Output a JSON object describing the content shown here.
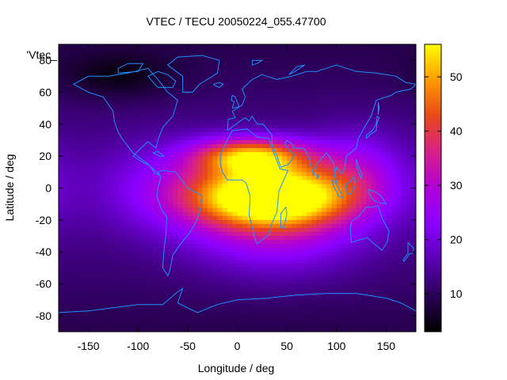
{
  "chart_data": {
    "type": "heatmap",
    "title": "VTEC / TECU 20050224_055.47700",
    "xlabel": "Longitude / deg",
    "ylabel": "Latitude / deg",
    "series_label": "'Vtec_",
    "xlim": [
      -180,
      180
    ],
    "ylim": [
      -90,
      90
    ],
    "x_ticks": [
      -150,
      -100,
      -50,
      0,
      50,
      100,
      150
    ],
    "y_ticks": [
      -80,
      -60,
      -40,
      -20,
      0,
      20,
      40,
      60,
      80
    ],
    "colorbar": {
      "range": [
        3,
        56
      ],
      "ticks": [
        10,
        20,
        30,
        40,
        50
      ],
      "stops": [
        "#000000",
        "#2a0055",
        "#5a00b4",
        "#8a00ff",
        "#b000d8",
        "#d8208a",
        "#e84818",
        "#ff9a00",
        "#ffff00"
      ]
    },
    "grid": false,
    "field_model": {
      "background": 9,
      "components": [
        {
          "lon": 35,
          "lat": -5,
          "amplitude": 42,
          "lon_sigma": 55,
          "lat_sigma": 13
        },
        {
          "lon": 15,
          "lat": 20,
          "amplitude": 34,
          "lon_sigma": 40,
          "lat_sigma": 8
        },
        {
          "lon": 40,
          "lat": -20,
          "amplitude": 18,
          "lon_sigma": 60,
          "lat_sigma": 22
        },
        {
          "lon": -60,
          "lat": 0,
          "amplitude": 10,
          "lon_sigma": 60,
          "lat_sigma": 20
        },
        {
          "lon": 120,
          "lat": 10,
          "amplitude": 12,
          "lon_sigma": 35,
          "lat_sigma": 18
        },
        {
          "lon": -120,
          "lat": 70,
          "amplitude": -6,
          "lon_sigma": 40,
          "lat_sigma": 10
        }
      ]
    },
    "coastlines": [
      {
        "name": "north-america",
        "points": [
          [
            -165,
            65
          ],
          [
            -150,
            70
          ],
          [
            -130,
            70
          ],
          [
            -110,
            72
          ],
          [
            -90,
            75
          ],
          [
            -80,
            68
          ],
          [
            -70,
            60
          ],
          [
            -60,
            55
          ],
          [
            -65,
            45
          ],
          [
            -75,
            38
          ],
          [
            -80,
            30
          ],
          [
            -82,
            25
          ],
          [
            -90,
            29
          ],
          [
            -97,
            25
          ],
          [
            -105,
            20
          ],
          [
            -95,
            16
          ],
          [
            -88,
            14
          ],
          [
            -83,
            9
          ],
          [
            -78,
            8
          ],
          [
            -90,
            15
          ],
          [
            -105,
            22
          ],
          [
            -115,
            30
          ],
          [
            -120,
            35
          ],
          [
            -124,
            42
          ],
          [
            -125,
            48
          ],
          [
            -135,
            57
          ],
          [
            -150,
            60
          ],
          [
            -165,
            65
          ]
        ]
      },
      {
        "name": "greenland",
        "points": [
          [
            -55,
            60
          ],
          [
            -45,
            60
          ],
          [
            -38,
            65
          ],
          [
            -20,
            72
          ],
          [
            -18,
            80
          ],
          [
            -35,
            83
          ],
          [
            -60,
            82
          ],
          [
            -70,
            77
          ],
          [
            -55,
            70
          ],
          [
            -55,
            60
          ]
        ]
      },
      {
        "name": "south-america",
        "points": [
          [
            -80,
            10
          ],
          [
            -75,
            11
          ],
          [
            -62,
            10
          ],
          [
            -50,
            0
          ],
          [
            -35,
            -5
          ],
          [
            -38,
            -15
          ],
          [
            -42,
            -22
          ],
          [
            -48,
            -28
          ],
          [
            -57,
            -35
          ],
          [
            -65,
            -42
          ],
          [
            -68,
            -52
          ],
          [
            -70,
            -55
          ],
          [
            -75,
            -50
          ],
          [
            -74,
            -40
          ],
          [
            -72,
            -30
          ],
          [
            -71,
            -18
          ],
          [
            -76,
            -14
          ],
          [
            -81,
            -5
          ],
          [
            -80,
            0
          ],
          [
            -77,
            7
          ],
          [
            -80,
            10
          ]
        ]
      },
      {
        "name": "africa",
        "points": [
          [
            -17,
            15
          ],
          [
            -17,
            21
          ],
          [
            -10,
            30
          ],
          [
            -5,
            36
          ],
          [
            10,
            37
          ],
          [
            20,
            32
          ],
          [
            32,
            31
          ],
          [
            35,
            25
          ],
          [
            43,
            12
          ],
          [
            51,
            11
          ],
          [
            42,
            -2
          ],
          [
            40,
            -15
          ],
          [
            35,
            -22
          ],
          [
            32,
            -29
          ],
          [
            20,
            -35
          ],
          [
            18,
            -32
          ],
          [
            12,
            -17
          ],
          [
            13,
            -5
          ],
          [
            9,
            3
          ],
          [
            5,
            5
          ],
          [
            -10,
            5
          ],
          [
            -15,
            10
          ],
          [
            -17,
            15
          ]
        ]
      },
      {
        "name": "eurasia",
        "points": [
          [
            -10,
            36
          ],
          [
            -9,
            43
          ],
          [
            -2,
            44
          ],
          [
            -5,
            48
          ],
          [
            5,
            52
          ],
          [
            8,
            57
          ],
          [
            5,
            62
          ],
          [
            15,
            68
          ],
          [
            25,
            71
          ],
          [
            40,
            68
          ],
          [
            55,
            70
          ],
          [
            70,
            73
          ],
          [
            80,
            73
          ],
          [
            100,
            77
          ],
          [
            120,
            73
          ],
          [
            140,
            72
          ],
          [
            160,
            70
          ],
          [
            170,
            66
          ],
          [
            180,
            65
          ],
          [
            175,
            62
          ],
          [
            160,
            60
          ],
          [
            155,
            58
          ],
          [
            140,
            55
          ],
          [
            135,
            45
          ],
          [
            128,
            38
          ],
          [
            122,
            31
          ],
          [
            120,
            25
          ],
          [
            110,
            20
          ],
          [
            108,
            12
          ],
          [
            105,
            9
          ],
          [
            100,
            13
          ],
          [
            98,
            8
          ],
          [
            100,
            3
          ],
          [
            97,
            16
          ],
          [
            90,
            22
          ],
          [
            80,
            15
          ],
          [
            77,
            8
          ],
          [
            72,
            20
          ],
          [
            67,
            25
          ],
          [
            57,
            25
          ],
          [
            56,
            27
          ],
          [
            50,
            30
          ],
          [
            48,
            28
          ],
          [
            52,
            24
          ],
          [
            58,
            21
          ],
          [
            52,
            15
          ],
          [
            44,
            13
          ],
          [
            40,
            20
          ],
          [
            35,
            28
          ],
          [
            35,
            33
          ],
          [
            30,
            37
          ],
          [
            26,
            40
          ],
          [
            20,
            40
          ],
          [
            15,
            45
          ],
          [
            12,
            42
          ],
          [
            8,
            44
          ],
          [
            3,
            42
          ],
          [
            -10,
            36
          ]
        ]
      },
      {
        "name": "australia",
        "points": [
          [
            115,
            -21
          ],
          [
            122,
            -18
          ],
          [
            130,
            -12
          ],
          [
            137,
            -12
          ],
          [
            142,
            -11
          ],
          [
            146,
            -19
          ],
          [
            153,
            -27
          ],
          [
            151,
            -34
          ],
          [
            146,
            -39
          ],
          [
            138,
            -35
          ],
          [
            131,
            -31
          ],
          [
            115,
            -34
          ],
          [
            114,
            -26
          ],
          [
            115,
            -21
          ]
        ]
      },
      {
        "name": "antarctica",
        "points": [
          [
            -180,
            -78
          ],
          [
            -150,
            -77
          ],
          [
            -100,
            -73
          ],
          [
            -75,
            -73
          ],
          [
            -60,
            -65
          ],
          [
            -55,
            -63
          ],
          [
            -60,
            -72
          ],
          [
            -40,
            -78
          ],
          [
            -20,
            -73
          ],
          [
            0,
            -70
          ],
          [
            30,
            -69
          ],
          [
            60,
            -67
          ],
          [
            90,
            -66
          ],
          [
            120,
            -66
          ],
          [
            150,
            -69
          ],
          [
            165,
            -72
          ],
          [
            180,
            -77
          ]
        ]
      },
      {
        "name": "british-isles",
        "points": [
          [
            -5,
            50
          ],
          [
            2,
            51
          ],
          [
            0,
            54
          ],
          [
            -2,
            57
          ],
          [
            -5,
            58
          ],
          [
            -6,
            55
          ],
          [
            -3,
            54
          ],
          [
            -5,
            50
          ]
        ]
      },
      {
        "name": "madagascar",
        "points": [
          [
            44,
            -25
          ],
          [
            47,
            -25
          ],
          [
            50,
            -16
          ],
          [
            49,
            -12
          ],
          [
            44,
            -16
          ],
          [
            44,
            -25
          ]
        ]
      },
      {
        "name": "japan",
        "points": [
          [
            130,
            31
          ],
          [
            135,
            34
          ],
          [
            140,
            36
          ],
          [
            141,
            41
          ],
          [
            143,
            44
          ],
          [
            141,
            45
          ],
          [
            140,
            40
          ],
          [
            136,
            36
          ],
          [
            130,
            33
          ],
          [
            130,
            31
          ]
        ]
      },
      {
        "name": "borneo",
        "points": [
          [
            109,
            2
          ],
          [
            114,
            4
          ],
          [
            117,
            7
          ],
          [
            119,
            5
          ],
          [
            117,
            -1
          ],
          [
            114,
            -4
          ],
          [
            110,
            -3
          ],
          [
            109,
            2
          ]
        ]
      },
      {
        "name": "sumatra",
        "points": [
          [
            95,
            5
          ],
          [
            98,
            4
          ],
          [
            104,
            -2
          ],
          [
            106,
            -6
          ],
          [
            102,
            -5
          ],
          [
            98,
            0
          ],
          [
            95,
            5
          ]
        ]
      },
      {
        "name": "new-guinea",
        "points": [
          [
            132,
            -1
          ],
          [
            138,
            -2
          ],
          [
            145,
            -5
          ],
          [
            150,
            -10
          ],
          [
            143,
            -9
          ],
          [
            138,
            -8
          ],
          [
            132,
            -3
          ],
          [
            132,
            -1
          ]
        ]
      },
      {
        "name": "new-zealand",
        "points": [
          [
            172,
            -34
          ],
          [
            178,
            -38
          ],
          [
            176,
            -41
          ],
          [
            174,
            -41
          ],
          [
            168,
            -46
          ],
          [
            167,
            -45
          ],
          [
            172,
            -41
          ],
          [
            172,
            -34
          ]
        ]
      },
      {
        "name": "iceland",
        "points": [
          [
            -24,
            65
          ],
          [
            -18,
            66
          ],
          [
            -14,
            65
          ],
          [
            -18,
            63
          ],
          [
            -22,
            64
          ],
          [
            -24,
            65
          ]
        ]
      },
      {
        "name": "baffin",
        "points": [
          [
            -80,
            63
          ],
          [
            -65,
            63
          ],
          [
            -62,
            67
          ],
          [
            -70,
            71
          ],
          [
            -80,
            73
          ],
          [
            -90,
            70
          ],
          [
            -80,
            63
          ]
        ]
      },
      {
        "name": "arctic-islands",
        "points": [
          [
            -120,
            72
          ],
          [
            -100,
            73
          ],
          [
            -95,
            78
          ],
          [
            -110,
            78
          ],
          [
            -120,
            75
          ],
          [
            -120,
            72
          ]
        ]
      },
      {
        "name": "svalbard",
        "points": [
          [
            15,
            77
          ],
          [
            20,
            78
          ],
          [
            25,
            80
          ],
          [
            15,
            80
          ],
          [
            15,
            77
          ]
        ]
      },
      {
        "name": "novaya-zemlya",
        "points": [
          [
            52,
            71
          ],
          [
            58,
            73
          ],
          [
            68,
            77
          ],
          [
            60,
            76
          ],
          [
            52,
            71
          ]
        ]
      },
      {
        "name": "cuba",
        "points": [
          [
            -85,
            22
          ],
          [
            -80,
            23
          ],
          [
            -74,
            20
          ],
          [
            -78,
            20
          ],
          [
            -85,
            22
          ]
        ]
      },
      {
        "name": "sri-lanka",
        "points": [
          [
            80,
            6
          ],
          [
            82,
            7
          ],
          [
            81,
            9
          ],
          [
            80,
            6
          ]
        ]
      },
      {
        "name": "philippines",
        "points": [
          [
            120,
            18
          ],
          [
            122,
            14
          ],
          [
            126,
            8
          ],
          [
            125,
            6
          ],
          [
            122,
            10
          ],
          [
            120,
            14
          ],
          [
            120,
            18
          ]
        ]
      },
      {
        "name": "sakhalin",
        "points": [
          [
            142,
            46
          ],
          [
            143,
            50
          ],
          [
            142,
            54
          ],
          [
            142,
            46
          ]
        ]
      }
    ]
  }
}
